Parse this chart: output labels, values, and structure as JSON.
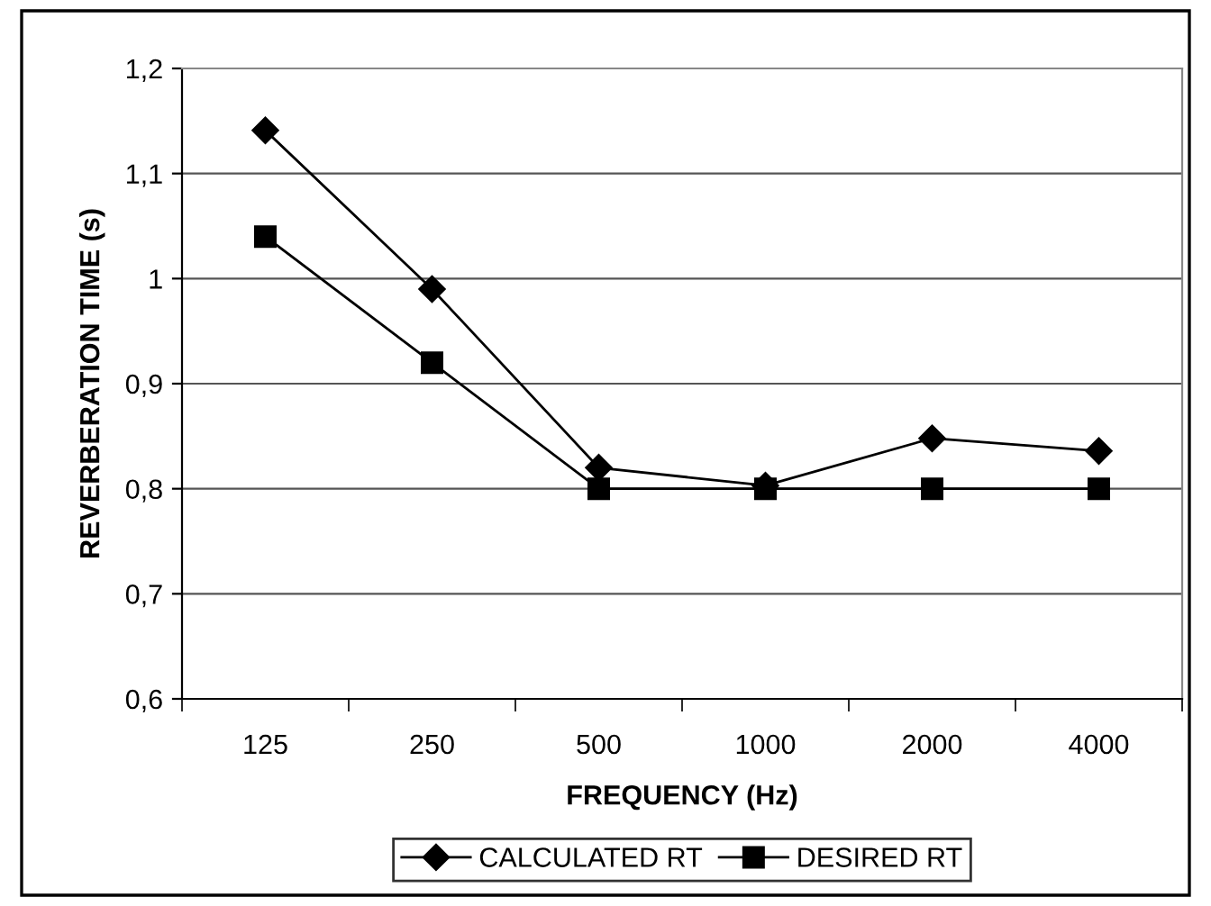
{
  "chart_data": {
    "type": "line",
    "xlabel": "FREQUENCY (Hz)",
    "ylabel": "REVERBERATION TIME (s)",
    "categories": [
      "125",
      "250",
      "500",
      "1000",
      "2000",
      "4000"
    ],
    "series": [
      {
        "name": "CALCULATED RT",
        "color": "#000000",
        "marker": "diamond",
        "values": [
          1.141,
          0.99,
          0.82,
          0.803,
          0.848,
          0.836
        ]
      },
      {
        "name": "DESIRED RT",
        "color": "#000000",
        "marker": "square",
        "values": [
          1.04,
          0.92,
          0.8,
          0.8,
          0.8,
          0.8
        ]
      }
    ],
    "ylim": [
      0.6,
      1.2
    ],
    "yticks": [
      {
        "value": 0.6,
        "label": "0,6"
      },
      {
        "value": 0.7,
        "label": "0,7"
      },
      {
        "value": 0.8,
        "label": "0,8"
      },
      {
        "value": 0.9,
        "label": "0,9"
      },
      {
        "value": 1,
        "label": "1"
      },
      {
        "value": 1.1,
        "label": "1,1"
      },
      {
        "value": 1.2,
        "label": "1,2"
      }
    ],
    "grid": "y",
    "legend": "bottom",
    "line_style": "solid"
  }
}
